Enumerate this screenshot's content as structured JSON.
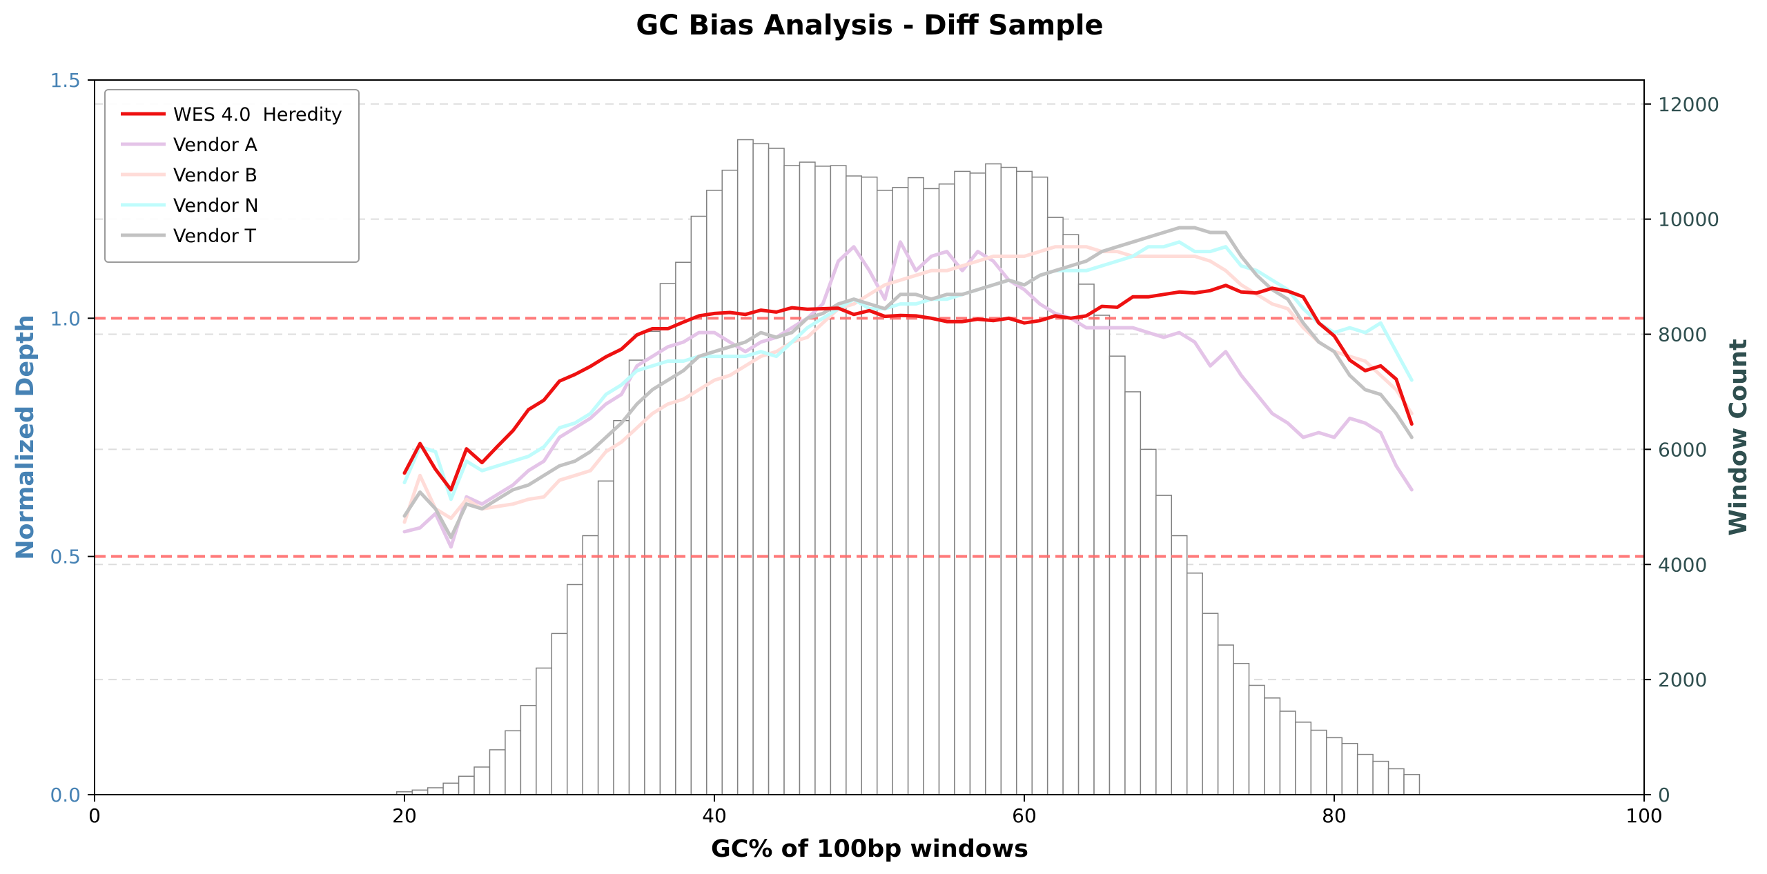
{
  "chart_data": {
    "type": "line",
    "title": "GC Bias Analysis - Diff Sample",
    "xlabel": "GC% of 100bp windows",
    "ylabel_left": "Normalized Depth",
    "ylabel_right": "Window Count",
    "xlim": [
      0,
      100
    ],
    "ylim_left": [
      0,
      1.5
    ],
    "ylim_right": [
      0,
      12417
    ],
    "x_ticks": [
      0,
      20,
      40,
      60,
      80,
      100
    ],
    "y_ticks_left": [
      0.0,
      0.5,
      1.0,
      1.5
    ],
    "y_tick_labels_left": [
      "0.0",
      "0.5",
      "1.0",
      "1.5"
    ],
    "y_ticks_right": [
      0,
      2000,
      4000,
      6000,
      8000,
      10000,
      12000
    ],
    "reference_lines": [
      0.5,
      1.0
    ],
    "legend_position": "top-left",
    "colors": {
      "left_axis": "#4682b4",
      "right_axis": "#2f4f4f",
      "reference": "#ff6b6b",
      "bars": "#808080"
    },
    "histogram": {
      "x": [
        20,
        21,
        22,
        23,
        24,
        25,
        26,
        27,
        28,
        29,
        30,
        31,
        32,
        33,
        34,
        35,
        36,
        37,
        38,
        39,
        40,
        41,
        42,
        43,
        44,
        45,
        46,
        47,
        48,
        49,
        50,
        51,
        52,
        53,
        54,
        55,
        56,
        57,
        58,
        59,
        60,
        61,
        62,
        63,
        64,
        65,
        66,
        67,
        68,
        69,
        70,
        71,
        72,
        73,
        74,
        75,
        76,
        77,
        78,
        79,
        80,
        81,
        82,
        83,
        84,
        85
      ],
      "values": [
        50,
        80,
        120,
        200,
        320,
        480,
        780,
        1110,
        1550,
        2200,
        2800,
        3650,
        4500,
        5450,
        6500,
        7550,
        8050,
        8880,
        9250,
        10050,
        10500,
        10850,
        11380,
        11310,
        11230,
        10930,
        10990,
        10920,
        10930,
        10750,
        10730,
        10500,
        10550,
        10720,
        10530,
        10610,
        10830,
        10800,
        10960,
        10900,
        10830,
        10730,
        10030,
        9730,
        8870,
        8330,
        7620,
        7000,
        6000,
        5200,
        4500,
        3850,
        3150,
        2600,
        2280,
        1900,
        1680,
        1450,
        1260,
        1120,
        990,
        890,
        700,
        580,
        450,
        350
      ]
    },
    "series": [
      {
        "name": "WES 4.0  Heredity",
        "color": "#ee1111",
        "width": 5,
        "opacity": 1.0,
        "values": [
          0.675,
          0.737,
          0.683,
          0.64,
          0.726,
          0.697,
          0.731,
          0.764,
          0.808,
          0.828,
          0.868,
          0.882,
          0.899,
          0.919,
          0.935,
          0.965,
          0.978,
          0.978,
          0.992,
          1.005,
          1.01,
          1.012,
          1.008,
          1.017,
          1.013,
          1.022,
          1.019,
          1.02,
          1.021,
          1.008,
          1.016,
          1.004,
          1.006,
          1.005,
          1.0,
          0.993,
          0.993,
          0.998,
          0.995,
          1.0,
          0.99,
          0.995,
          1.005,
          1.0,
          1.005,
          1.025,
          1.023,
          1.045,
          1.045,
          1.05,
          1.055,
          1.053,
          1.058,
          1.069,
          1.055,
          1.053,
          1.063,
          1.057,
          1.045,
          0.99,
          0.963,
          0.912,
          0.89,
          0.9,
          0.872,
          0.778
        ]
      },
      {
        "name": "Vendor A",
        "color": "#e4c4e8",
        "width": 5,
        "opacity": 1.0,
        "values": [
          0.552,
          0.56,
          0.59,
          0.52,
          0.625,
          0.61,
          0.63,
          0.65,
          0.68,
          0.7,
          0.75,
          0.77,
          0.79,
          0.82,
          0.84,
          0.9,
          0.92,
          0.94,
          0.95,
          0.97,
          0.97,
          0.95,
          0.93,
          0.95,
          0.96,
          0.98,
          1.0,
          1.03,
          1.12,
          1.15,
          1.1,
          1.04,
          1.16,
          1.1,
          1.13,
          1.14,
          1.1,
          1.14,
          1.12,
          1.08,
          1.06,
          1.03,
          1.01,
          1.0,
          0.98,
          0.98,
          0.98,
          0.98,
          0.97,
          0.96,
          0.97,
          0.95,
          0.9,
          0.93,
          0.88,
          0.84,
          0.8,
          0.78,
          0.75,
          0.76,
          0.75,
          0.79,
          0.78,
          0.76,
          0.69,
          0.64
        ]
      },
      {
        "name": "Vendor B",
        "color": "#ffdcd8",
        "width": 5,
        "opacity": 1.0,
        "values": [
          0.572,
          0.67,
          0.6,
          0.58,
          0.62,
          0.6,
          0.605,
          0.61,
          0.62,
          0.625,
          0.66,
          0.67,
          0.68,
          0.72,
          0.74,
          0.77,
          0.8,
          0.82,
          0.83,
          0.85,
          0.87,
          0.88,
          0.9,
          0.92,
          0.93,
          0.95,
          0.96,
          0.99,
          1.02,
          1.03,
          1.05,
          1.07,
          1.08,
          1.09,
          1.1,
          1.1,
          1.11,
          1.12,
          1.13,
          1.13,
          1.13,
          1.14,
          1.15,
          1.15,
          1.15,
          1.14,
          1.14,
          1.13,
          1.13,
          1.13,
          1.13,
          1.13,
          1.12,
          1.1,
          1.07,
          1.05,
          1.03,
          1.02,
          0.98,
          0.95,
          0.93,
          0.92,
          0.91,
          0.88,
          0.85,
          0.8
        ]
      },
      {
        "name": "Vendor N",
        "color": "#bffcfc",
        "width": 5,
        "opacity": 1.0,
        "values": [
          0.655,
          0.73,
          0.72,
          0.62,
          0.7,
          0.68,
          0.69,
          0.7,
          0.71,
          0.73,
          0.77,
          0.78,
          0.8,
          0.84,
          0.86,
          0.89,
          0.9,
          0.91,
          0.91,
          0.92,
          0.92,
          0.92,
          0.92,
          0.93,
          0.92,
          0.95,
          0.98,
          1.0,
          1.02,
          1.04,
          1.02,
          1.02,
          1.03,
          1.03,
          1.04,
          1.04,
          1.05,
          1.06,
          1.07,
          1.08,
          1.07,
          1.09,
          1.1,
          1.1,
          1.1,
          1.11,
          1.12,
          1.13,
          1.15,
          1.15,
          1.16,
          1.14,
          1.14,
          1.15,
          1.11,
          1.1,
          1.08,
          1.06,
          1.02,
          0.99,
          0.97,
          0.98,
          0.97,
          0.99,
          0.93,
          0.87
        ]
      },
      {
        "name": "Vendor T",
        "color": "#c2c2c2",
        "width": 5,
        "opacity": 1.0,
        "values": [
          0.585,
          0.635,
          0.6,
          0.54,
          0.61,
          0.6,
          0.62,
          0.64,
          0.65,
          0.67,
          0.69,
          0.7,
          0.72,
          0.75,
          0.78,
          0.82,
          0.85,
          0.87,
          0.89,
          0.92,
          0.93,
          0.94,
          0.95,
          0.97,
          0.96,
          0.97,
          1.0,
          1.01,
          1.03,
          1.04,
          1.03,
          1.02,
          1.05,
          1.05,
          1.04,
          1.05,
          1.05,
          1.06,
          1.07,
          1.08,
          1.07,
          1.09,
          1.1,
          1.11,
          1.12,
          1.14,
          1.15,
          1.16,
          1.17,
          1.18,
          1.19,
          1.19,
          1.18,
          1.18,
          1.13,
          1.09,
          1.06,
          1.04,
          0.99,
          0.95,
          0.93,
          0.88,
          0.85,
          0.84,
          0.8,
          0.75
        ]
      }
    ]
  }
}
